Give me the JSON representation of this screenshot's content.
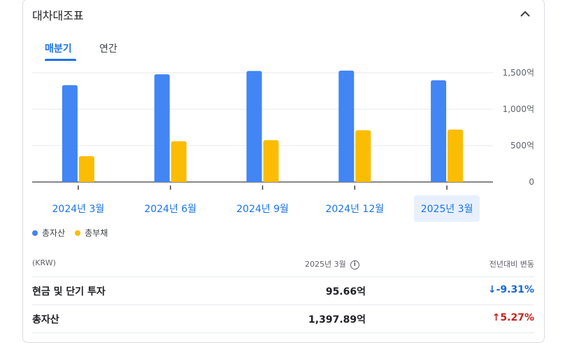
{
  "header": {
    "title": "대차대조표"
  },
  "tabs": [
    {
      "label": "매분기",
      "active": true
    },
    {
      "label": "연간",
      "active": false
    }
  ],
  "chart_data": {
    "type": "bar",
    "categories": [
      "2024년 3월",
      "2024년 6월",
      "2024년 9월",
      "2024년 12월",
      "2025년 3월"
    ],
    "selected_category": "2025년 3월",
    "series": [
      {
        "name": "총자산",
        "color": "#4285f4",
        "values": [
          1330,
          1480,
          1525,
          1530,
          1397.89
        ]
      },
      {
        "name": "총부채",
        "color": "#fbbc04",
        "values": [
          355,
          560,
          575,
          710,
          720
        ]
      }
    ],
    "y_ticks": [
      "1,500억",
      "1,000억",
      "500억",
      "0"
    ],
    "ylim": [
      0,
      1500
    ],
    "grid": true,
    "legend_position": "bottom-left"
  },
  "legend": [
    {
      "label": "총자산",
      "color": "#4285f4"
    },
    {
      "label": "총부채",
      "color": "#fbbc04"
    }
  ],
  "table": {
    "col_currency": "(KRW)",
    "col_period": "2025년 3월",
    "col_change": "전년대비 변동",
    "rows": [
      {
        "label": "현금 및 단기 투자",
        "value": "95.66억",
        "change": "-9.31%",
        "direction": "down"
      },
      {
        "label": "총자산",
        "value": "1,397.89억",
        "change": "5.27%",
        "direction": "up"
      }
    ]
  }
}
